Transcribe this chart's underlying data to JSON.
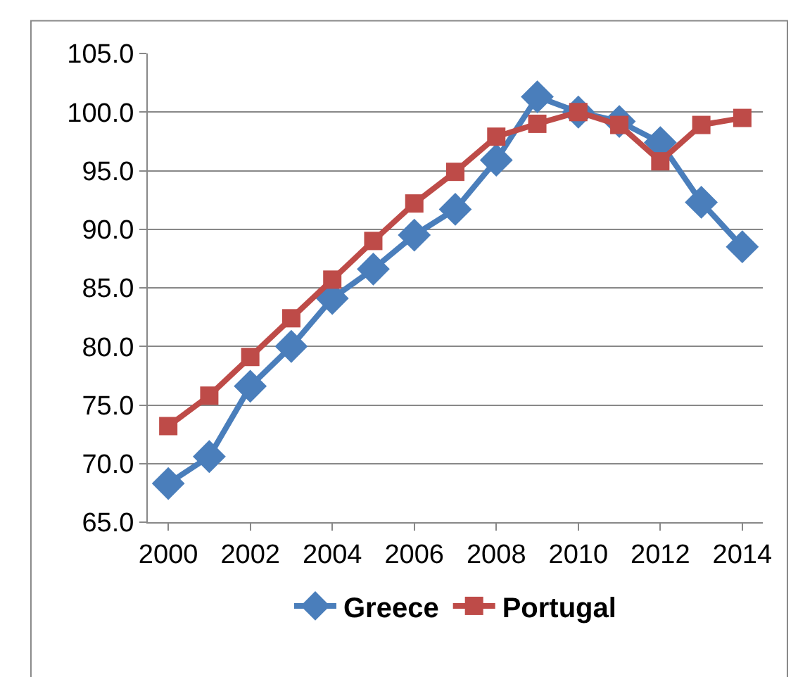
{
  "chart_data": {
    "type": "line",
    "x": [
      2000,
      2001,
      2002,
      2003,
      2004,
      2005,
      2006,
      2007,
      2008,
      2009,
      2010,
      2011,
      2012,
      2013,
      2014
    ],
    "xlim": [
      1999.5,
      2014.5
    ],
    "xticks": [
      2000,
      2002,
      2004,
      2006,
      2008,
      2010,
      2012,
      2014
    ],
    "ylim": [
      65,
      105
    ],
    "yticks": [
      {
        "value": 65,
        "label": "65.0"
      },
      {
        "value": 70,
        "label": "70.0"
      },
      {
        "value": 75,
        "label": "75.0"
      },
      {
        "value": 80,
        "label": "80.0"
      },
      {
        "value": 85,
        "label": "85.0"
      },
      {
        "value": 90,
        "label": "90.0"
      },
      {
        "value": 95,
        "label": "95.0"
      },
      {
        "value": 100,
        "label": "100.0"
      },
      {
        "value": 105,
        "label": "105.0"
      }
    ],
    "grid": "y",
    "legend": "bottom",
    "series": [
      {
        "name": "Greece",
        "color": "#4a7ebb",
        "marker": "diamond",
        "values": [
          68.3,
          70.6,
          76.6,
          80.0,
          84.1,
          86.6,
          89.5,
          91.7,
          95.9,
          101.3,
          100.0,
          99.2,
          97.4,
          92.3,
          88.5
        ]
      },
      {
        "name": "Portugal",
        "color": "#be4b48",
        "marker": "square",
        "values": [
          73.2,
          75.8,
          79.1,
          82.4,
          85.7,
          89.0,
          92.2,
          94.9,
          97.9,
          99.0,
          100.0,
          98.9,
          95.8,
          98.9,
          99.5
        ]
      }
    ]
  }
}
